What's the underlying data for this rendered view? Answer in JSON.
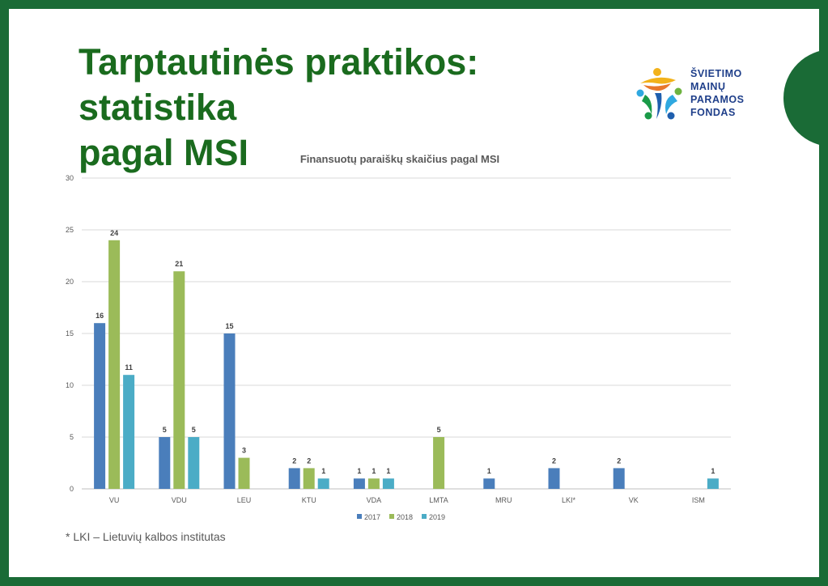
{
  "slide": {
    "title_line1": "Tarptautinės praktikos: statistika",
    "title_line2": "pagal MSI",
    "footnote": "* LKI – Lietuvių kalbos institutas"
  },
  "logo": {
    "lines": [
      "ŠVIETIMO",
      "MAINŲ",
      "PARAMOS",
      "FONDAS"
    ],
    "icon": "people-figures-logo-icon"
  },
  "colors": {
    "background_frame": "#1a6b36",
    "title": "#1a6b1e",
    "logo_text": "#1f3f8a"
  },
  "chart_data": {
    "type": "bar",
    "title": "Finansuotų paraiškų skaičius pagal MSI",
    "xlabel": "",
    "ylabel": "",
    "categories": [
      "VU",
      "VDU",
      "LEU",
      "KTU",
      "VDA",
      "LMTA",
      "MRU",
      "LKI*",
      "VK",
      "ISM"
    ],
    "series": [
      {
        "name": "2017",
        "color": "#4a7ebb",
        "values": [
          16,
          5,
          15,
          2,
          1,
          null,
          1,
          2,
          2,
          null
        ]
      },
      {
        "name": "2018",
        "color": "#9bbb59",
        "values": [
          24,
          21,
          3,
          2,
          1,
          5,
          null,
          null,
          null,
          null
        ]
      },
      {
        "name": "2019",
        "color": "#4bacc6",
        "values": [
          11,
          5,
          null,
          1,
          1,
          null,
          null,
          null,
          null,
          1
        ]
      }
    ],
    "ylim": [
      0,
      30
    ],
    "yticks": [
      0,
      5,
      10,
      15,
      20,
      25,
      30
    ],
    "grid": true,
    "legend": "bottom",
    "data_labels": true
  }
}
